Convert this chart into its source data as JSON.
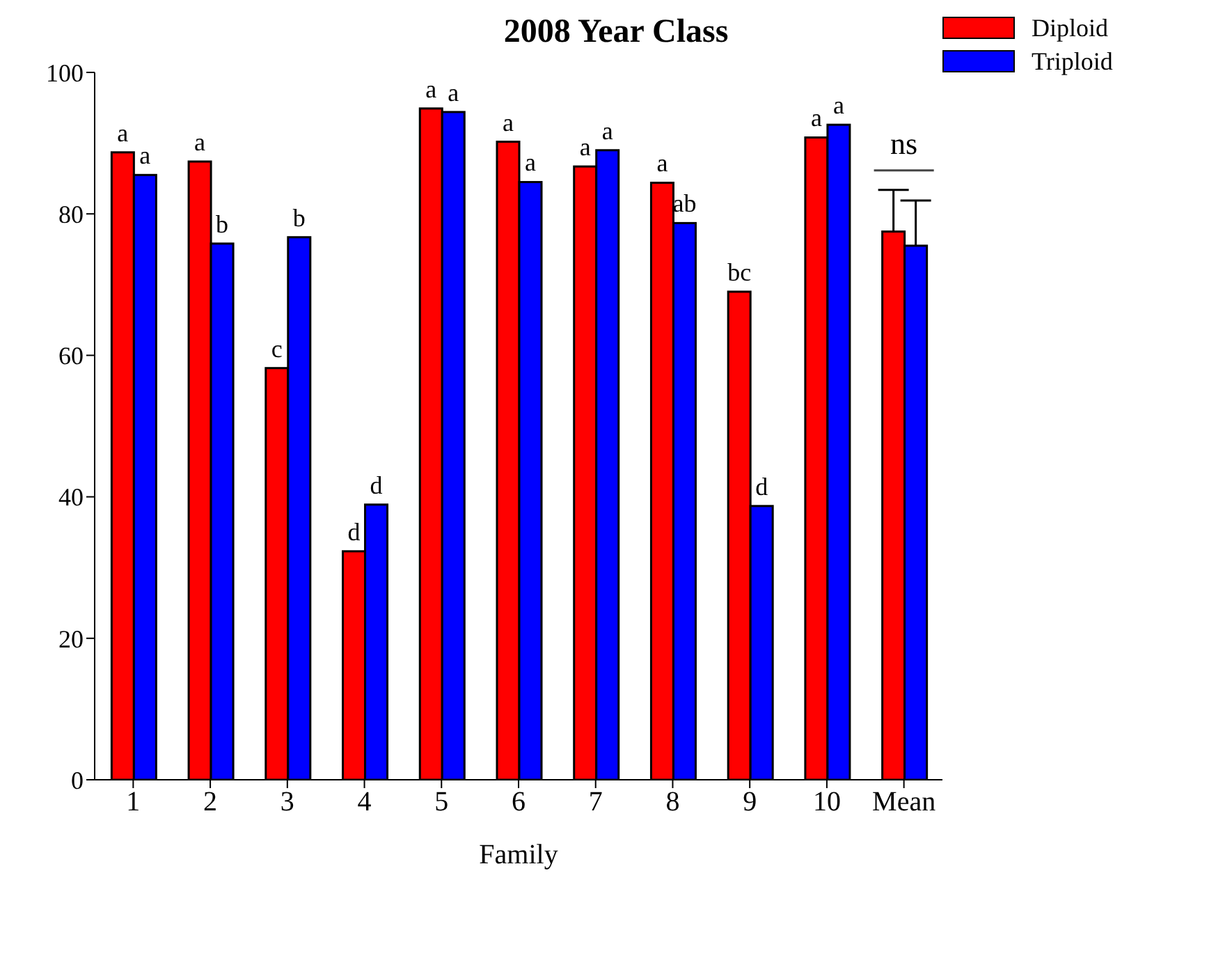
{
  "chart_data": {
    "type": "bar",
    "title": "2008 Year Class",
    "xlabel": "Family",
    "categories": [
      "1",
      "2",
      "3",
      "4",
      "5",
      "6",
      "7",
      "8",
      "9",
      "10",
      "Mean"
    ],
    "series": [
      {
        "name": "Diploid",
        "color": "#ff0000",
        "values": [
          88.7,
          87.4,
          58.2,
          32.3,
          94.9,
          90.2,
          86.7,
          84.4,
          69.0,
          90.8,
          77.5
        ],
        "errors": [
          null,
          null,
          null,
          null,
          null,
          null,
          null,
          null,
          null,
          null,
          [
            77.5,
            83.4
          ]
        ],
        "value_labels": [
          "a",
          "a",
          "c",
          "d",
          "a",
          "a",
          "a",
          "a",
          "bc",
          "a",
          null
        ]
      },
      {
        "name": "Triploid",
        "color": "#0000ff",
        "values": [
          85.5,
          75.8,
          76.7,
          38.9,
          94.4,
          84.5,
          89.0,
          78.7,
          38.7,
          92.6,
          75.5
        ],
        "errors": [
          null,
          null,
          null,
          null,
          null,
          null,
          null,
          null,
          null,
          null,
          [
            75.5,
            81.9
          ]
        ],
        "value_labels": [
          "a",
          "b",
          "b",
          "d",
          "a",
          "a",
          "a",
          "ab",
          "d",
          "a",
          null
        ]
      }
    ],
    "ylim": [
      0,
      100
    ],
    "yticks": [
      0,
      20,
      40,
      60,
      80,
      100
    ],
    "grid": false,
    "legend": "top right",
    "annotations": [
      "ns"
    ]
  }
}
